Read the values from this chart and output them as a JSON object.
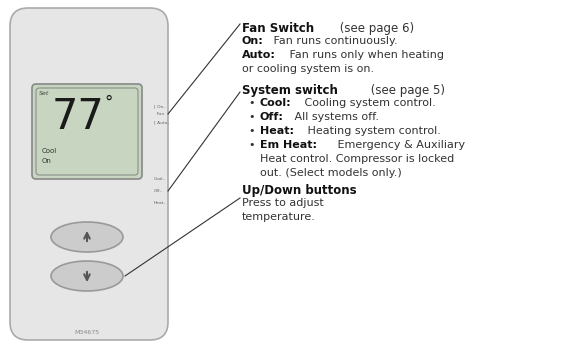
{
  "bg_color": "#ffffff",
  "body_color": "#e6e6e6",
  "body_border_color": "#aaaaaa",
  "screen_color": "#c8d5c0",
  "screen_border_color": "#888888",
  "button_color": "#cccccc",
  "button_border_color": "#999999",
  "text_color": "#333333",
  "label_color": "#666666",
  "line_color": "#333333",
  "model_number": "M34675",
  "fan_switch_bold": "Fan Switch",
  "fan_switch_normal": " (see page 6)",
  "fan_on_bold": "On:",
  "fan_on_normal": " Fan runs continuously.",
  "fan_auto_bold": "Auto:",
  "fan_auto_normal": " Fan runs only when heating",
  "fan_auto_normal2": "or cooling system is on.",
  "sys_switch_bold": "System switch",
  "sys_switch_normal": " (see page 5)",
  "bullet1_bold": "Cool:",
  "bullet1_normal": " Cooling system control.",
  "bullet2_bold": "Off:",
  "bullet2_normal": " All systems off.",
  "bullet3_bold": "Heat:",
  "bullet3_normal": " Heating system control.",
  "bullet4_bold": "Em Heat:",
  "bullet4_normal": " Emergency & Auxiliary",
  "bullet4_line2": "Heat control. Compressor is locked",
  "bullet4_line3": "out. (Select models only.)",
  "updown_bold": "Up/Down buttons",
  "updown_line1": "Press to adjust",
  "updown_line2": "temperature."
}
